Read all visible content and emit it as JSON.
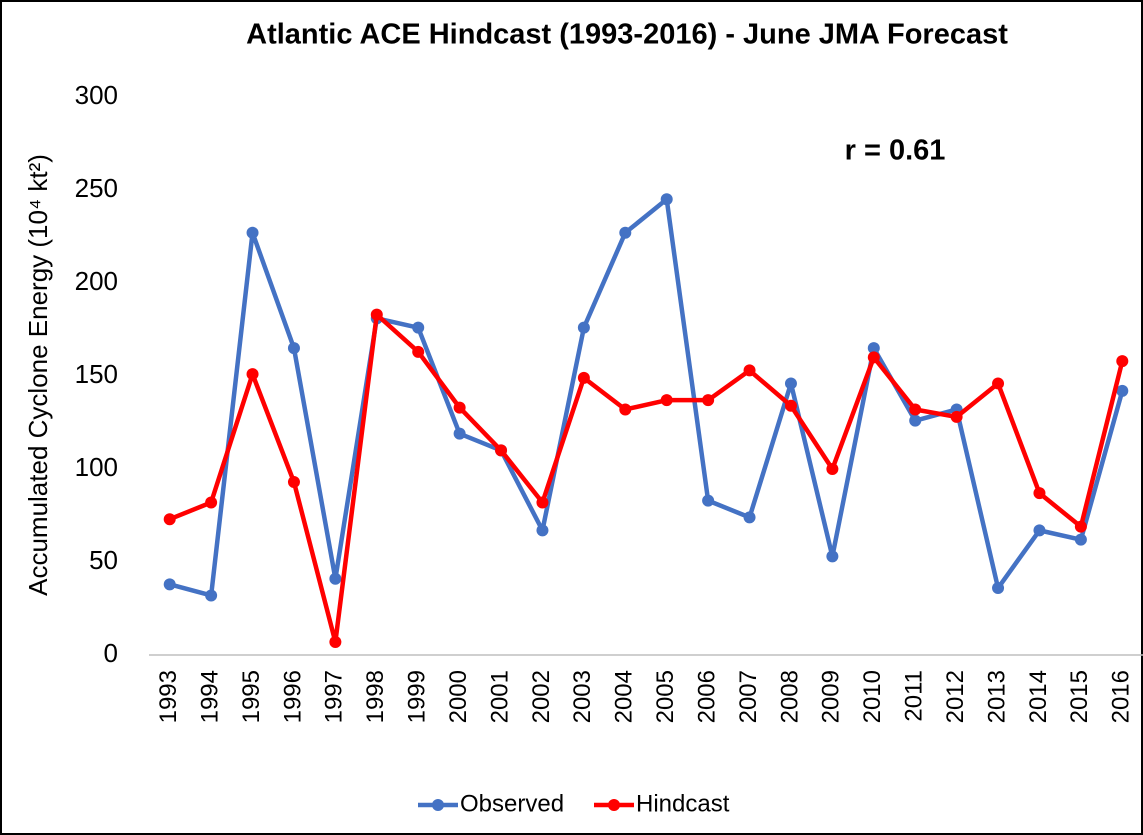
{
  "chart_data": {
    "type": "line",
    "title": "Atlantic ACE Hindcast (1993-2016) - June JMA Forecast",
    "y_label": "Accumulated Cyclone Energy (10⁴ kt²)",
    "annotation": "r = 0.61",
    "categories": [
      "1993",
      "1994",
      "1995",
      "1996",
      "1997",
      "1998",
      "1999",
      "2000",
      "2001",
      "2002",
      "2003",
      "2004",
      "2005",
      "2006",
      "2007",
      "2008",
      "2009",
      "2010",
      "2011",
      "2012",
      "2013",
      "2014",
      "2015",
      "2016"
    ],
    "series": [
      {
        "name": "Observed",
        "color": "#4472c4",
        "values": [
          38,
          32,
          227,
          165,
          41,
          181,
          176,
          119,
          110,
          67,
          176,
          227,
          245,
          83,
          74,
          146,
          53,
          165,
          126,
          132,
          36,
          67,
          62,
          142
        ]
      },
      {
        "name": "Hindcast",
        "color": "#ff0000",
        "values": [
          73,
          82,
          151,
          93,
          7,
          183,
          163,
          133,
          110,
          82,
          149,
          132,
          137,
          137,
          153,
          134,
          100,
          160,
          132,
          128,
          146,
          87,
          69,
          158
        ]
      }
    ],
    "ylim": [
      0,
      300
    ],
    "yticks": [
      0,
      50,
      100,
      150,
      200,
      250,
      300
    ],
    "grid": false,
    "legend": "bottom"
  }
}
